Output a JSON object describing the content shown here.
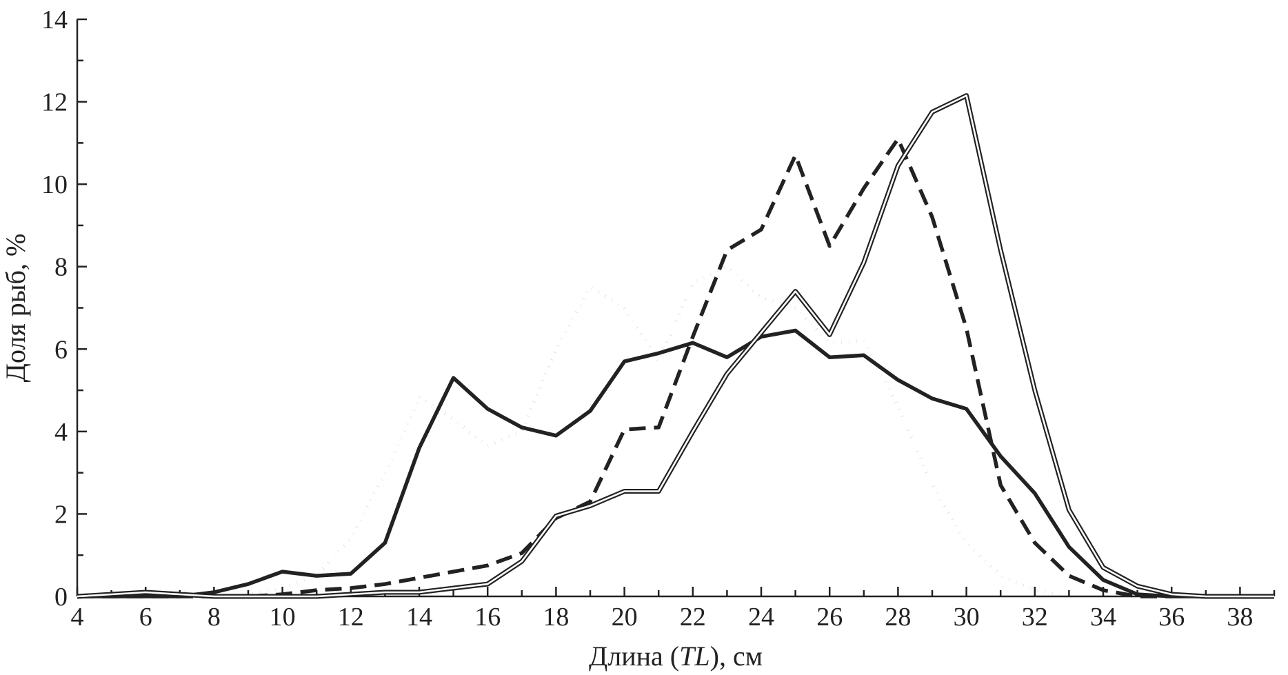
{
  "chart_data": {
    "type": "line",
    "title": "",
    "xlabel_parts": [
      "Длина (",
      "TL",
      "), см"
    ],
    "ylabel": "Доля рыб, %",
    "xlim": [
      4,
      39
    ],
    "ylim": [
      0,
      14
    ],
    "xticks": [
      4,
      6,
      8,
      10,
      12,
      14,
      16,
      18,
      20,
      22,
      24,
      26,
      28,
      30,
      32,
      34,
      36,
      38
    ],
    "yticks": [
      0,
      2,
      4,
      6,
      8,
      10,
      12,
      14
    ],
    "grid": false,
    "legend": "none",
    "series": [
      {
        "style": "solid",
        "x": [
          4,
          5,
          6,
          7,
          8,
          9,
          10,
          11,
          12,
          13,
          14,
          15,
          16,
          17,
          18,
          19,
          20,
          21,
          22,
          23,
          24,
          25,
          26,
          27,
          28,
          29,
          30,
          31,
          32,
          33,
          34,
          35,
          36,
          37,
          38,
          39
        ],
        "values": [
          0,
          0,
          0,
          0,
          0.1,
          0.3,
          0.6,
          0.5,
          0.55,
          1.3,
          3.6,
          5.3,
          4.55,
          4.1,
          3.9,
          4.5,
          5.7,
          5.9,
          6.15,
          5.8,
          6.3,
          6.45,
          5.8,
          5.85,
          5.25,
          4.8,
          4.55,
          3.4,
          2.5,
          1.2,
          0.4,
          0.05,
          0,
          0,
          0,
          0
        ]
      },
      {
        "style": "dotted",
        "x": [
          4,
          5,
          6,
          7,
          8,
          9,
          10,
          11,
          12,
          13,
          14,
          15,
          16,
          17,
          18,
          19,
          20,
          21,
          22,
          23,
          24,
          25,
          26,
          27,
          28,
          29,
          30,
          31,
          32,
          33
        ],
        "values": [
          0,
          0,
          0,
          0.1,
          0,
          0.05,
          0.2,
          0.5,
          1.4,
          3.0,
          4.85,
          4.3,
          3.65,
          4.0,
          6.0,
          7.5,
          7.0,
          5.7,
          7.6,
          8.0,
          7.25,
          7.0,
          6.15,
          6.2,
          4.6,
          2.7,
          1.3,
          0.5,
          0.15,
          0
        ]
      },
      {
        "style": "dashed",
        "x": [
          4,
          5,
          6,
          7,
          8,
          9,
          10,
          11,
          12,
          13,
          14,
          15,
          16,
          17,
          18,
          19,
          20,
          21,
          22,
          23,
          24,
          25,
          26,
          27,
          28,
          29,
          30,
          31,
          32,
          33,
          34,
          35,
          36
        ],
        "values": [
          0,
          0,
          0,
          0,
          0,
          0,
          0.05,
          0.15,
          0.2,
          0.3,
          0.45,
          0.6,
          0.75,
          1.05,
          1.9,
          2.3,
          4.05,
          4.1,
          6.3,
          8.4,
          8.9,
          10.7,
          8.5,
          9.9,
          11.1,
          9.2,
          6.5,
          2.7,
          1.3,
          0.5,
          0.15,
          0,
          0
        ]
      },
      {
        "style": "double",
        "x": [
          4,
          5,
          6,
          7,
          8,
          9,
          10,
          11,
          12,
          13,
          14,
          15,
          16,
          17,
          18,
          19,
          20,
          21,
          22,
          23,
          24,
          25,
          26,
          27,
          28,
          29,
          30,
          31,
          32,
          33,
          34,
          35,
          36,
          37,
          38,
          39
        ],
        "values": [
          0,
          0.05,
          0.1,
          0.05,
          0,
          0,
          0,
          0,
          0.05,
          0.1,
          0.1,
          0.2,
          0.3,
          0.85,
          1.95,
          2.2,
          2.55,
          2.55,
          4.0,
          5.4,
          6.4,
          7.4,
          6.35,
          8.1,
          10.45,
          11.75,
          12.15,
          8.4,
          5.0,
          2.1,
          0.7,
          0.25,
          0.05,
          0,
          0,
          0
        ]
      }
    ],
    "colors": {
      "ink": "#222222",
      "background": "#ffffff"
    }
  }
}
